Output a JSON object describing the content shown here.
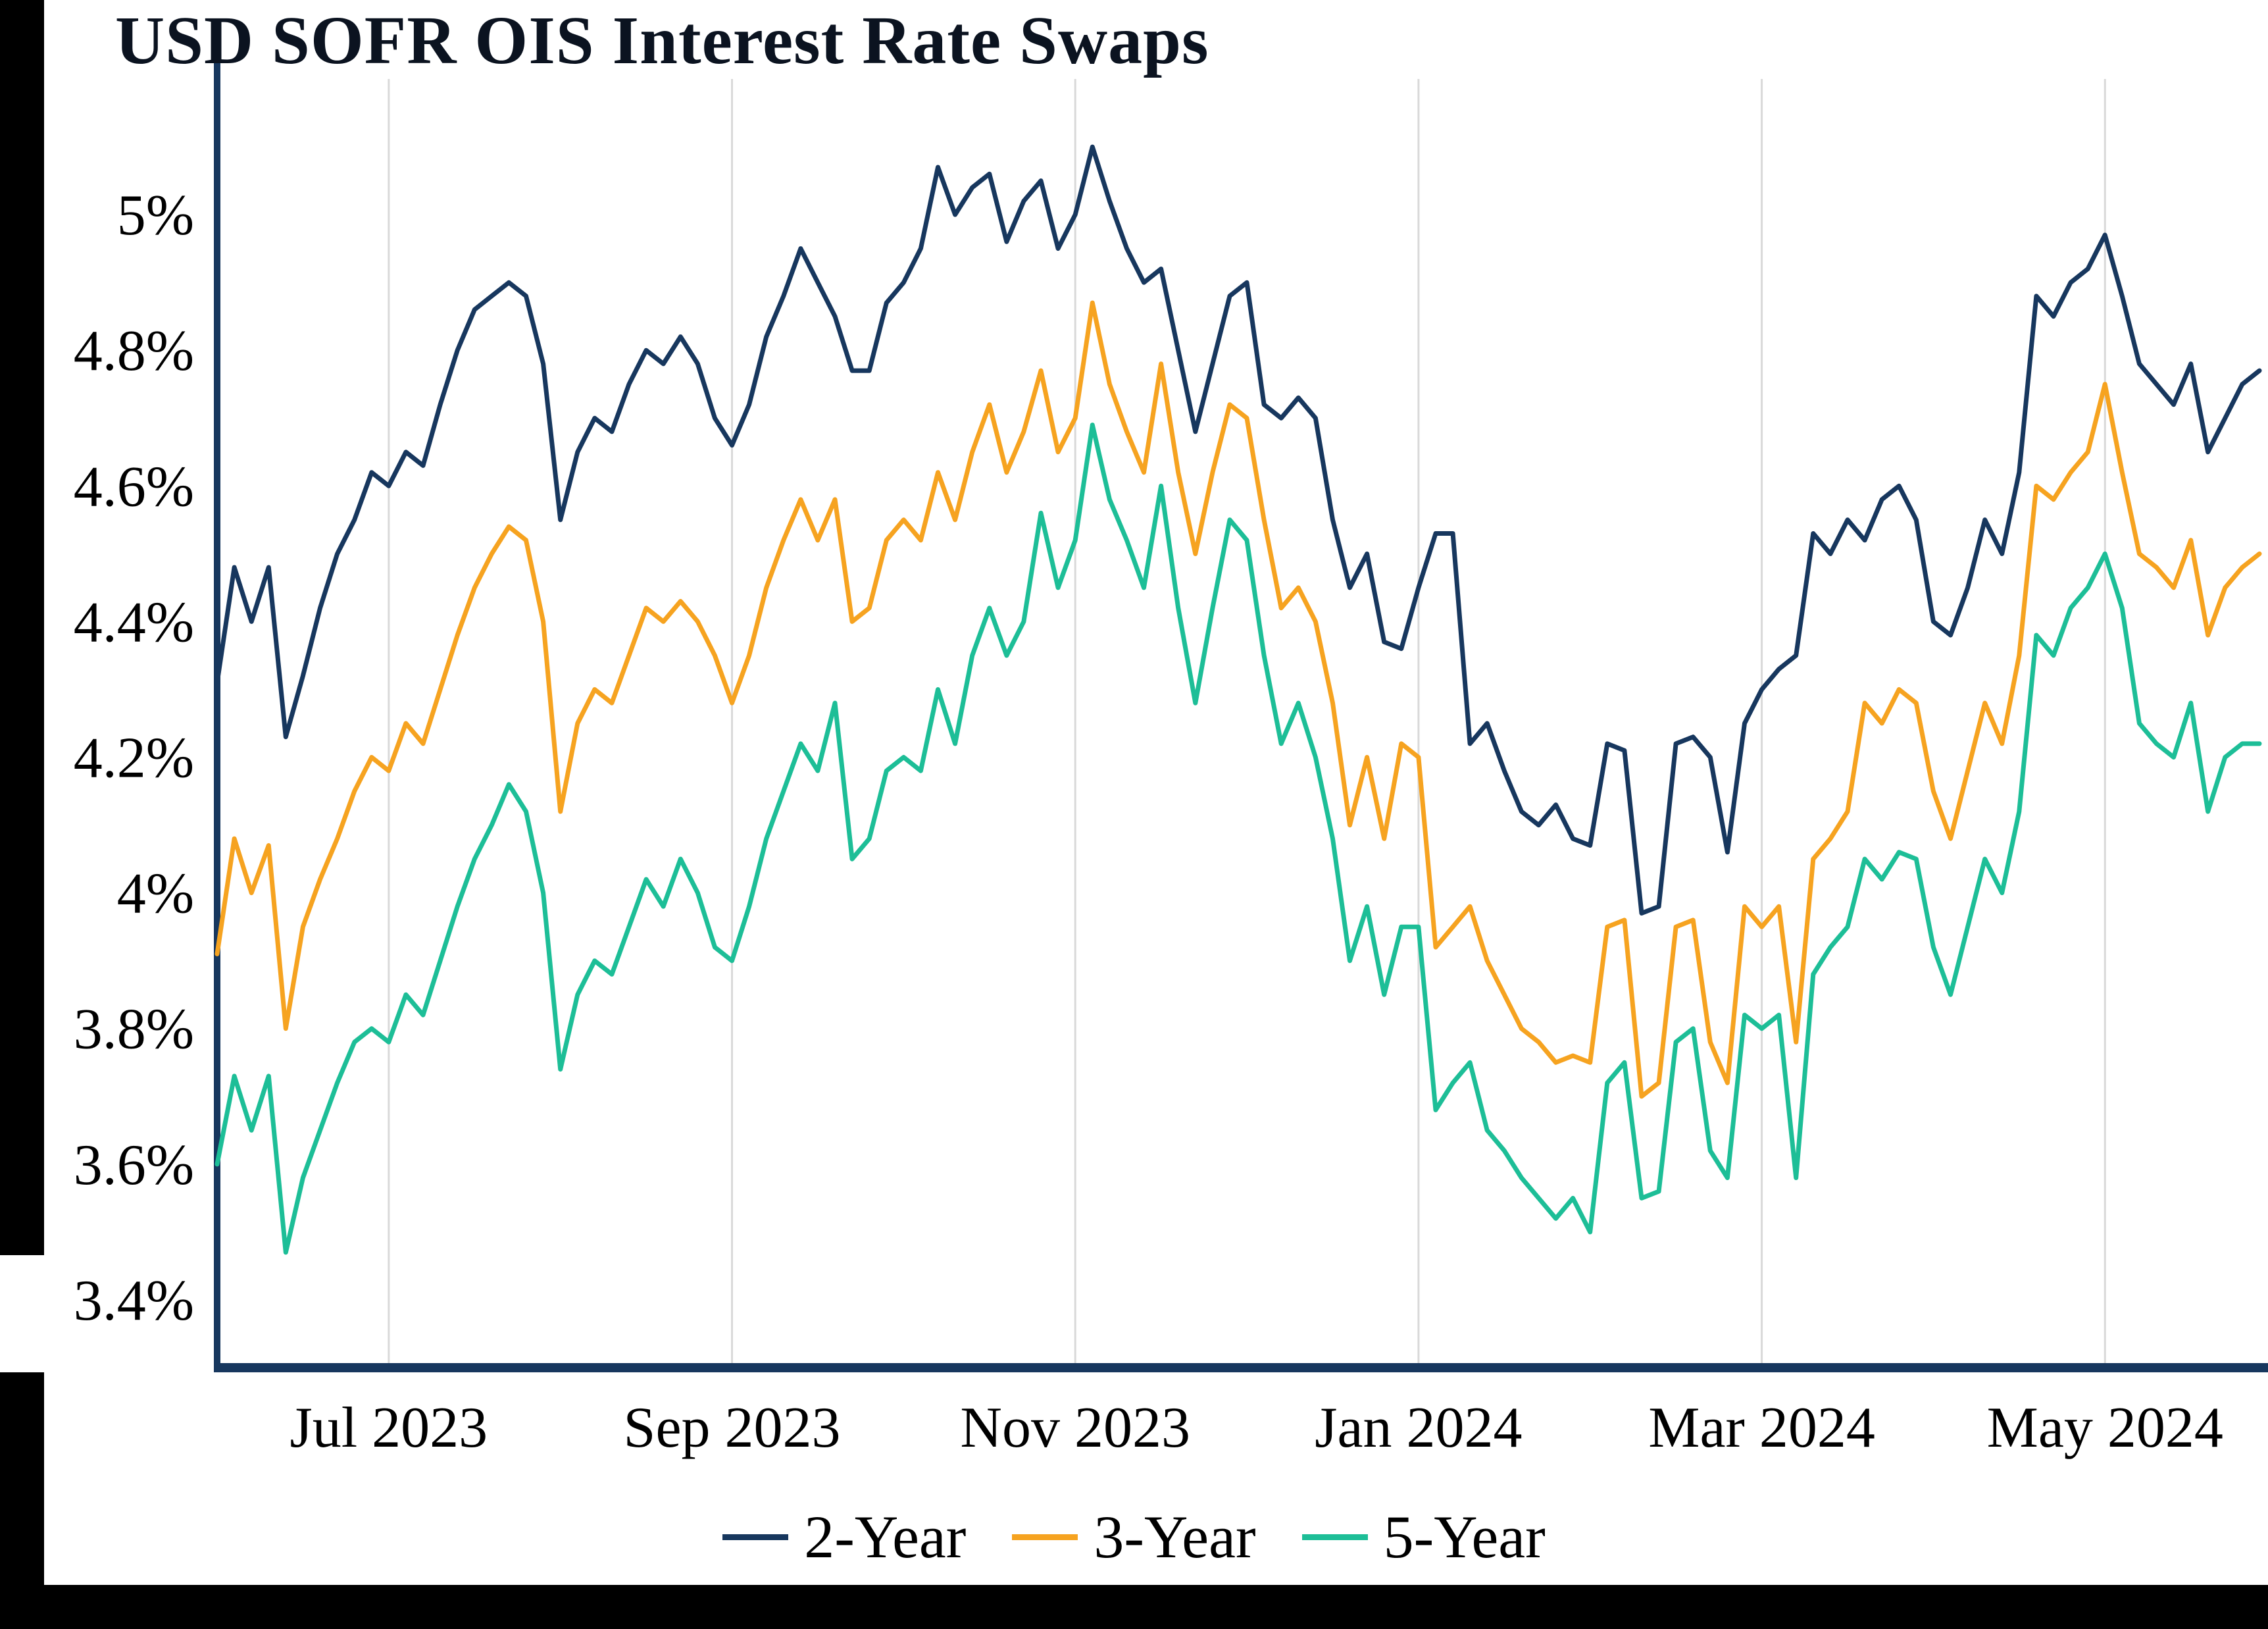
{
  "chart_data": {
    "type": "line",
    "title": "USD SOFR OIS Interest Rate Swaps",
    "xlabel": "",
    "ylabel": "",
    "grid": "vertical-only",
    "legend_position": "bottom",
    "ylim": [
      3.3,
      5.2
    ],
    "y_ticks": [
      "3.4%",
      "3.6%",
      "3.8%",
      "4%",
      "4.2%",
      "4.4%",
      "4.6%",
      "4.8%",
      "5%"
    ],
    "y_tick_values": [
      3.4,
      3.6,
      3.8,
      4.0,
      4.2,
      4.4,
      4.6,
      4.8,
      5.0
    ],
    "x_tick_labels": [
      "Jul 2023",
      "Sep 2023",
      "Nov 2023",
      "Jan 2024",
      "Mar 2024",
      "May 2024"
    ],
    "x_tick_indices": [
      10,
      30,
      50,
      70,
      90,
      110
    ],
    "x_range": [
      "Jun 2023",
      "May 2024"
    ],
    "axis_color": "#17375E",
    "gridline_color": "#d9d9d9",
    "series": [
      {
        "name": "2-Year",
        "color": "#17375E",
        "values": [
          4.31,
          4.48,
          4.4,
          4.48,
          4.23,
          4.32,
          4.42,
          4.5,
          4.55,
          4.62,
          4.6,
          4.65,
          4.63,
          4.72,
          4.8,
          4.86,
          4.88,
          4.9,
          4.88,
          4.78,
          4.55,
          4.65,
          4.7,
          4.68,
          4.75,
          4.8,
          4.78,
          4.82,
          4.78,
          4.7,
          4.66,
          4.72,
          4.82,
          4.88,
          4.95,
          4.9,
          4.85,
          4.77,
          4.77,
          4.87,
          4.9,
          4.95,
          5.07,
          5.0,
          5.04,
          5.06,
          4.96,
          5.02,
          5.05,
          4.95,
          5.0,
          5.1,
          5.02,
          4.95,
          4.9,
          4.92,
          4.8,
          4.68,
          4.78,
          4.88,
          4.9,
          4.72,
          4.7,
          4.73,
          4.7,
          4.55,
          4.45,
          4.5,
          4.37,
          4.36,
          4.45,
          4.53,
          4.53,
          4.22,
          4.25,
          4.18,
          4.12,
          4.1,
          4.13,
          4.08,
          4.07,
          4.22,
          4.21,
          3.97,
          3.98,
          4.22,
          4.23,
          4.2,
          4.06,
          4.25,
          4.3,
          4.33,
          4.35,
          4.53,
          4.5,
          4.55,
          4.52,
          4.58,
          4.6,
          4.55,
          4.4,
          4.38,
          4.45,
          4.55,
          4.5,
          4.62,
          4.88,
          4.85,
          4.9,
          4.92,
          4.97,
          4.88,
          4.78,
          4.75,
          4.72,
          4.78,
          4.65,
          4.7,
          4.75,
          4.77
        ]
      },
      {
        "name": "3-Year",
        "color": "#F6A320",
        "values": [
          3.91,
          4.08,
          4.0,
          4.07,
          3.8,
          3.95,
          4.02,
          4.08,
          4.15,
          4.2,
          4.18,
          4.25,
          4.22,
          4.3,
          4.38,
          4.45,
          4.5,
          4.54,
          4.52,
          4.4,
          4.12,
          4.25,
          4.3,
          4.28,
          4.35,
          4.42,
          4.4,
          4.43,
          4.4,
          4.35,
          4.28,
          4.35,
          4.45,
          4.52,
          4.58,
          4.52,
          4.58,
          4.4,
          4.42,
          4.52,
          4.55,
          4.52,
          4.62,
          4.55,
          4.65,
          4.72,
          4.62,
          4.68,
          4.77,
          4.65,
          4.7,
          4.87,
          4.75,
          4.68,
          4.62,
          4.78,
          4.62,
          4.5,
          4.62,
          4.72,
          4.7,
          4.55,
          4.42,
          4.45,
          4.4,
          4.28,
          4.1,
          4.2,
          4.08,
          4.22,
          4.2,
          3.92,
          3.95,
          3.98,
          3.9,
          3.85,
          3.8,
          3.78,
          3.75,
          3.76,
          3.75,
          3.95,
          3.96,
          3.7,
          3.72,
          3.95,
          3.96,
          3.78,
          3.72,
          3.98,
          3.95,
          3.98,
          3.78,
          4.05,
          4.08,
          4.12,
          4.28,
          4.25,
          4.3,
          4.28,
          4.15,
          4.08,
          4.18,
          4.28,
          4.22,
          4.35,
          4.6,
          4.58,
          4.62,
          4.65,
          4.75,
          4.62,
          4.5,
          4.48,
          4.45,
          4.52,
          4.38,
          4.45,
          4.48,
          4.5
        ]
      },
      {
        "name": "5-Year",
        "color": "#1DBE97",
        "values": [
          3.6,
          3.73,
          3.65,
          3.73,
          3.47,
          3.58,
          3.65,
          3.72,
          3.78,
          3.8,
          3.78,
          3.85,
          3.82,
          3.9,
          3.98,
          4.05,
          4.1,
          4.16,
          4.12,
          4.0,
          3.74,
          3.85,
          3.9,
          3.88,
          3.95,
          4.02,
          3.98,
          4.05,
          4.0,
          3.92,
          3.9,
          3.98,
          4.08,
          4.15,
          4.22,
          4.18,
          4.28,
          4.05,
          4.08,
          4.18,
          4.2,
          4.18,
          4.3,
          4.22,
          4.35,
          4.42,
          4.35,
          4.4,
          4.56,
          4.45,
          4.52,
          4.69,
          4.58,
          4.52,
          4.45,
          4.6,
          4.42,
          4.28,
          4.42,
          4.55,
          4.52,
          4.35,
          4.22,
          4.28,
          4.2,
          4.08,
          3.9,
          3.98,
          3.85,
          3.95,
          3.95,
          3.68,
          3.72,
          3.75,
          3.65,
          3.62,
          3.58,
          3.55,
          3.52,
          3.55,
          3.5,
          3.72,
          3.75,
          3.55,
          3.56,
          3.78,
          3.8,
          3.62,
          3.58,
          3.82,
          3.8,
          3.82,
          3.58,
          3.88,
          3.92,
          3.95,
          4.05,
          4.02,
          4.06,
          4.05,
          3.92,
          3.85,
          3.95,
          4.05,
          4.0,
          4.12,
          4.38,
          4.35,
          4.42,
          4.45,
          4.5,
          4.42,
          4.25,
          4.22,
          4.2,
          4.28,
          4.12,
          4.2,
          4.22,
          4.22
        ]
      }
    ]
  }
}
